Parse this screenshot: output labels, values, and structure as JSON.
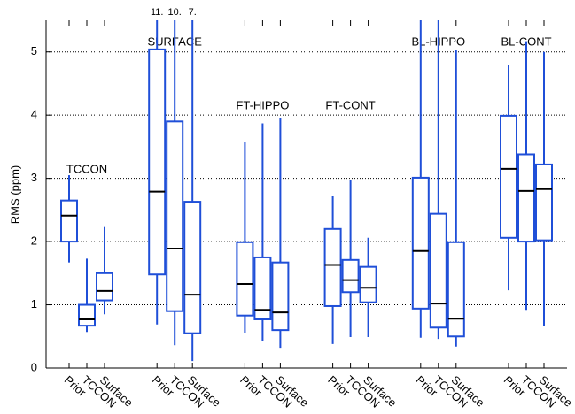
{
  "chart_data": {
    "type": "box",
    "ylabel": "RMS (ppm)",
    "color": "#1f4fd8",
    "median_color": "#000000",
    "ylim": [
      0,
      5.5
    ],
    "yticks": [
      0,
      1,
      2,
      3,
      4,
      5
    ],
    "grid": true,
    "groups": [
      {
        "name": "TCCON",
        "boxes": [
          {
            "name": "Prior",
            "low": 1.67,
            "q1": 2.0,
            "median": 2.41,
            "q3": 2.65,
            "high": 3.05
          },
          {
            "name": "TCCON",
            "low": 0.57,
            "q1": 0.67,
            "median": 0.77,
            "q3": 1.0,
            "high": 1.73
          },
          {
            "name": "Surface",
            "low": 0.85,
            "q1": 1.07,
            "median": 1.22,
            "q3": 1.5,
            "high": 2.23
          }
        ]
      },
      {
        "name": "SURFACE",
        "boxes": [
          {
            "name": "Prior",
            "low": 0.69,
            "q1": 1.48,
            "median": 2.79,
            "q3": 5.04,
            "high": 11,
            "high_label": "11."
          },
          {
            "name": "TCCON",
            "low": 0.36,
            "q1": 0.9,
            "median": 1.89,
            "q3": 3.9,
            "high": 10,
            "high_label": "10."
          },
          {
            "name": "Surface",
            "low": 0.11,
            "q1": 0.55,
            "median": 1.16,
            "q3": 2.63,
            "high": 7,
            "high_label": "7."
          }
        ]
      },
      {
        "name": "FT-HIPPO",
        "boxes": [
          {
            "name": "Prior",
            "low": 0.56,
            "q1": 0.83,
            "median": 1.33,
            "q3": 1.99,
            "high": 3.57
          },
          {
            "name": "TCCON",
            "low": 0.42,
            "q1": 0.77,
            "median": 0.92,
            "q3": 1.75,
            "high": 3.87
          },
          {
            "name": "Surface",
            "low": 0.32,
            "q1": 0.6,
            "median": 0.88,
            "q3": 1.67,
            "high": 3.96
          }
        ]
      },
      {
        "name": "FT-CONT",
        "boxes": [
          {
            "name": "Prior",
            "low": 0.38,
            "q1": 0.98,
            "median": 1.63,
            "q3": 2.2,
            "high": 2.72
          },
          {
            "name": "TCCON",
            "low": 0.49,
            "q1": 1.2,
            "median": 1.39,
            "q3": 1.71,
            "high": 2.98
          },
          {
            "name": "Surface",
            "low": 0.49,
            "q1": 1.04,
            "median": 1.27,
            "q3": 1.6,
            "high": 2.06
          }
        ]
      },
      {
        "name": "BL-HIPPO",
        "boxes": [
          {
            "name": "Prior",
            "low": 0.48,
            "q1": 0.94,
            "median": 1.85,
            "q3": 3.01,
            "high": 5.5
          },
          {
            "name": "TCCON",
            "low": 0.46,
            "q1": 0.64,
            "median": 1.02,
            "q3": 2.44,
            "high": 5.5
          },
          {
            "name": "Surface",
            "low": 0.34,
            "q1": 0.5,
            "median": 0.78,
            "q3": 1.99,
            "high": 5.03
          }
        ]
      },
      {
        "name": "BL-CONT",
        "boxes": [
          {
            "name": "Prior",
            "low": 1.23,
            "q1": 2.06,
            "median": 3.15,
            "q3": 3.99,
            "high": 4.8
          },
          {
            "name": "TCCON",
            "low": 0.92,
            "q1": 2.0,
            "median": 2.8,
            "q3": 3.38,
            "high": 5.17
          },
          {
            "name": "Surface",
            "low": 0.66,
            "q1": 2.02,
            "median": 2.83,
            "q3": 3.22,
            "high": 5.0
          }
        ]
      }
    ]
  }
}
